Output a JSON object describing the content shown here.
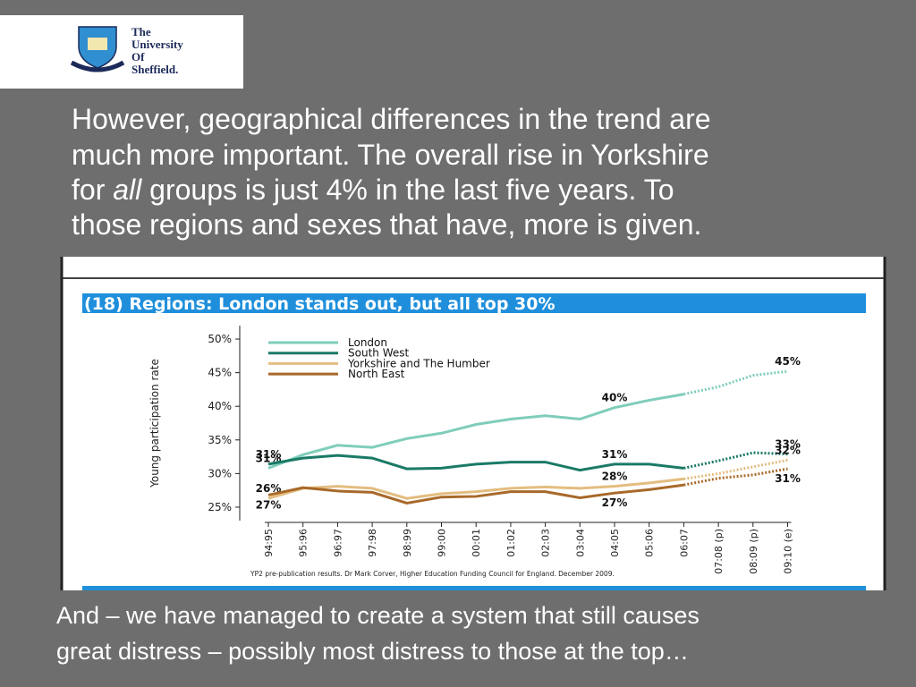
{
  "logo": {
    "lines": [
      "The",
      "University",
      "Of",
      "Sheffield."
    ]
  },
  "heading": [
    "However, geographical differences in the trend are",
    "much more important. The overall rise in Yorkshire",
    [
      "for ",
      "all",
      " groups is just 4% in the last five years. To"
    ],
    "those regions and sexes that have, more is given."
  ],
  "footer": [
    "And – we have managed to create a system that still causes",
    "great distress – possibly most distress to those at the top…"
  ],
  "chart_data": {
    "type": "line",
    "title": "(18)  Regions: London stands out, but all top 30%",
    "y_label": "Young participation rate",
    "source": "YP2 pre-publication results. Dr Mark Corver, Higher Education Funding Council for England. December 2009.",
    "categories": [
      "94:95",
      "95:96",
      "96:97",
      "97:98",
      "98:99",
      "99:00",
      "00:01",
      "01:02",
      "02:03",
      "03:04",
      "04:05",
      "05:06",
      "06:07",
      "07:08 (p)",
      "08:09 (p)",
      "09:10 (e)"
    ],
    "projection_from_index": 12,
    "ylim": [
      23,
      52
    ],
    "yticks": [
      {
        "value": 25,
        "label": "25%"
      },
      {
        "value": 30,
        "label": "30%"
      },
      {
        "value": 35,
        "label": "35%"
      },
      {
        "value": 40,
        "label": "40%"
      },
      {
        "value": 45,
        "label": "45%"
      },
      {
        "value": 50,
        "label": "50%"
      }
    ],
    "grid": false,
    "legend": "top-left",
    "series": [
      {
        "name": "London",
        "color": "#7fcdbb",
        "values": [
          30.8,
          32.8,
          34.2,
          33.9,
          35.2,
          36,
          37.3,
          38.1,
          38.6,
          38.1,
          39.8,
          40.9,
          41.8,
          42.9,
          44.6,
          45.2
        ],
        "value_labels": [
          "31%",
          null,
          null,
          null,
          null,
          null,
          null,
          null,
          null,
          null,
          "40%",
          null,
          null,
          null,
          null,
          "45%"
        ]
      },
      {
        "name": "South West",
        "color": "#1a7a66",
        "values": [
          31.4,
          32.3,
          32.7,
          32.3,
          30.7,
          30.8,
          31.4,
          31.7,
          31.7,
          30.5,
          31.4,
          31.4,
          30.8,
          31.9,
          33.1,
          32.9
        ],
        "value_labels": [
          "31%",
          null,
          null,
          null,
          null,
          null,
          null,
          null,
          null,
          null,
          "31%",
          null,
          null,
          null,
          null,
          "33%"
        ]
      },
      {
        "name": "Yorkshire and The Humber",
        "color": "#e3bd80",
        "values": [
          26.3,
          27.8,
          28.1,
          27.8,
          26.3,
          27,
          27.3,
          27.8,
          28,
          27.8,
          28.1,
          28.6,
          29.2,
          30,
          31,
          32
        ],
        "value_labels": [
          "26%",
          null,
          null,
          null,
          null,
          null,
          null,
          null,
          null,
          null,
          "28%",
          null,
          null,
          null,
          null,
          "32%"
        ]
      },
      {
        "name": "North East",
        "color": "#a8692a",
        "values": [
          26.8,
          27.9,
          27.4,
          27.2,
          25.6,
          26.5,
          26.6,
          27.3,
          27.3,
          26.4,
          27.1,
          27.6,
          28.3,
          29.3,
          29.8,
          30.7
        ],
        "value_labels": [
          "27%",
          null,
          null,
          null,
          null,
          null,
          null,
          null,
          null,
          null,
          "27%",
          null,
          null,
          null,
          null,
          "31%"
        ]
      }
    ]
  }
}
